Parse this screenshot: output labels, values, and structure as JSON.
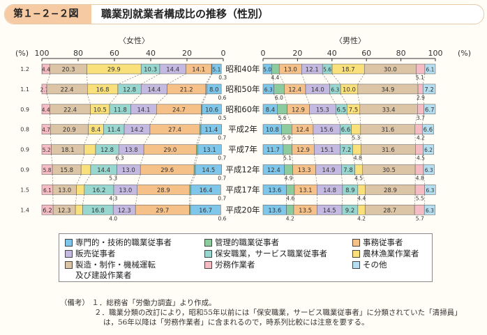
{
  "header": {
    "figure_number": "第１−２−２図",
    "title": "職業別就業者構成比の推移（性別）"
  },
  "chart_data": {
    "type": "bar",
    "orientation": "horizontal-stacked",
    "panels": [
      {
        "name": "female",
        "label": "〈女性〉",
        "unit_label": "(%)",
        "ticks": [
          "100",
          "80",
          "60",
          "40",
          "20",
          "0"
        ],
        "direction": "right-to-left"
      },
      {
        "name": "male",
        "label": "〈男性〉",
        "unit_label": "(%)",
        "ticks": [
          "0",
          "20",
          "40",
          "60",
          "80",
          "100"
        ],
        "direction": "left-to-right"
      }
    ],
    "categories": [
      "昭和40年",
      "昭和50年",
      "昭和60年",
      "平成2年",
      "平成7年",
      "平成12年",
      "平成17年",
      "平成20年"
    ],
    "occupations": [
      {
        "label": "専門的・技術的職業従事者",
        "color": "#7ec6ea"
      },
      {
        "label": "管理的職業従事者",
        "color": "#8ccb9e"
      },
      {
        "label": "事務従事者",
        "color": "#f6c089"
      },
      {
        "label": "販売従事者",
        "color": "#c4b9e0"
      },
      {
        "label": "保安職業、サービス職業従事者",
        "color": "#98d6d0"
      },
      {
        "label": "農林漁業作業者",
        "color": "#f9e07a"
      },
      {
        "label": "製造・制作・機械運転\n及び建設作業者",
        "color": "#dcc4a6"
      },
      {
        "label": "労務作業者",
        "color": "#f5bcc4"
      },
      {
        "label": "その他",
        "color": "#b5dff0"
      }
    ],
    "female_values": [
      [
        null,
        null,
        null,
        null,
        null,
        null,
        null,
        null,
        null
      ],
      [
        null,
        null,
        null,
        null,
        null,
        null,
        null,
        null,
        null
      ],
      [
        null,
        null,
        null,
        null,
        null,
        null,
        null,
        null,
        null
      ],
      [
        null,
        null,
        null,
        null,
        null,
        null,
        null,
        null,
        null
      ],
      [
        null,
        null,
        null,
        null,
        null,
        null,
        null,
        null,
        null
      ],
      [
        null,
        null,
        null,
        null,
        null,
        null,
        null,
        null,
        null
      ],
      [
        null,
        null,
        null,
        null,
        null,
        null,
        null,
        null,
        null
      ],
      [
        null,
        null,
        null,
        null,
        null,
        null,
        null,
        null,
        null
      ]
    ],
    "female_rows": [
      {
        "outer": "1.2",
        "segs": [
          [
            "その他",
            0.1,
            ""
          ],
          [
            "労務作業者",
            4.4,
            "4.4"
          ],
          [
            "製造",
            20.3,
            "20.3"
          ],
          [
            "農林",
            29.9,
            "29.9"
          ],
          [
            "保安",
            10.3,
            "10.3"
          ],
          [
            "販売",
            14.4,
            "14.4"
          ],
          [
            "事務",
            14.1,
            "14.1"
          ],
          [
            "管理",
            0.3,
            ""
          ],
          [
            "専門",
            5.1,
            "5.1"
          ]
        ],
        "below": [
          {
            "text": "0.3",
            "at": 0.3
          }
        ]
      },
      {
        "outer": "1.1",
        "segs": [
          [
            "労務作業者",
            2.7,
            "2.7"
          ],
          [
            "製造",
            22.4,
            "22.4"
          ],
          [
            "農林",
            16.8,
            "16.8"
          ],
          [
            "保安",
            12.8,
            "12.8"
          ],
          [
            "販売",
            14.4,
            "14.4"
          ],
          [
            "事務",
            21.2,
            "21.2"
          ],
          [
            "管理",
            0.6,
            ""
          ],
          [
            "専門",
            8.0,
            "8.0"
          ]
        ],
        "below": [
          {
            "text": "0.6",
            "at": 0.6
          }
        ]
      },
      {
        "outer": "0.9",
        "segs": [
          [
            "労務作業者",
            4.4,
            "4.4"
          ],
          [
            "製造",
            22.4,
            "22.4"
          ],
          [
            "農林",
            10.5,
            "10.5"
          ],
          [
            "保安",
            11.8,
            "11.8"
          ],
          [
            "販売",
            14.1,
            "14.1"
          ],
          [
            "事務",
            24.7,
            "24.7"
          ],
          [
            "管理",
            0.5,
            ""
          ],
          [
            "専門",
            10.6,
            "10.6"
          ]
        ],
        "below": [
          {
            "text": "0.5",
            "at": 0.5
          }
        ]
      },
      {
        "outer": "0.8",
        "segs": [
          [
            "労務作業者",
            4.7,
            "4.7"
          ],
          [
            "製造",
            20.9,
            "20.9"
          ],
          [
            "農林",
            8.4,
            "8.4"
          ],
          [
            "保安",
            11.4,
            "11.4"
          ],
          [
            "販売",
            14.2,
            "14.2"
          ],
          [
            "事務",
            27.4,
            "27.4"
          ],
          [
            "管理",
            0.7,
            ""
          ],
          [
            "専門",
            11.4,
            "11.4"
          ]
        ],
        "below": [
          {
            "text": "0.7",
            "at": 0.7
          }
        ]
      },
      {
        "outer": "0.9",
        "segs": [
          [
            "労務作業者",
            5.2,
            "5.2"
          ],
          [
            "製造",
            18.1,
            "18.1"
          ],
          [
            "農林",
            6.3,
            ""
          ],
          [
            "保安",
            12.8,
            "12.8"
          ],
          [
            "販売",
            13.8,
            "13.8"
          ],
          [
            "事務",
            29.0,
            "29.0"
          ],
          [
            "管理",
            0.7,
            ""
          ],
          [
            "専門",
            13.1,
            "13.1"
          ]
        ],
        "below": [
          {
            "text": "6.3",
            "at": 57.1
          },
          {
            "text": "0.7",
            "at": 0.7
          }
        ]
      },
      {
        "outer": "0.9",
        "segs": [
          [
            "労務作業者",
            5.8,
            "5.8"
          ],
          [
            "製造",
            15.8,
            "15.8"
          ],
          [
            "農林",
            5.3,
            ""
          ],
          [
            "保安",
            14.4,
            "14.4"
          ],
          [
            "販売",
            13.0,
            "13.0"
          ],
          [
            "事務",
            29.6,
            "29.6"
          ],
          [
            "管理",
            0.7,
            ""
          ],
          [
            "専門",
            14.5,
            "14.5"
          ]
        ],
        "below": [
          {
            "text": "5.3",
            "at": 60.7
          },
          {
            "text": "0.7",
            "at": 0.7
          }
        ]
      },
      {
        "outer": "1.5",
        "segs": [
          [
            "労務作業者",
            6.1,
            "6.1"
          ],
          [
            "製造",
            13.0,
            "13.0"
          ],
          [
            "農林",
            4.3,
            ""
          ],
          [
            "保安",
            16.2,
            "16.2"
          ],
          [
            "販売",
            13.0,
            "13.0"
          ],
          [
            "事務",
            28.9,
            "28.9"
          ],
          [
            "管理",
            0.7,
            ""
          ],
          [
            "専門",
            16.4,
            "16.4"
          ]
        ],
        "below": [
          {
            "text": "4.3",
            "at": 60.6
          },
          {
            "text": "0.7",
            "at": 0.7
          }
        ]
      },
      {
        "outer": "1.4",
        "segs": [
          [
            "労務作業者",
            6.2,
            "6.2"
          ],
          [
            "製造",
            12.3,
            "12.3"
          ],
          [
            "農林",
            4.0,
            ""
          ],
          [
            "保安",
            16.8,
            "16.8"
          ],
          [
            "販売",
            12.3,
            "12.3"
          ],
          [
            "事務",
            29.7,
            "29.7"
          ],
          [
            "管理",
            0.6,
            ""
          ],
          [
            "専門",
            16.7,
            "16.7"
          ]
        ],
        "below": [
          {
            "text": "4.0",
            "at": 60.7
          },
          {
            "text": "0.6",
            "at": 0.6
          }
        ]
      }
    ],
    "male_rows": [
      {
        "segs": [
          [
            "専門",
            5.0,
            "5.0"
          ],
          [
            "管理",
            4.4,
            ""
          ],
          [
            "事務",
            13.0,
            "13.0"
          ],
          [
            "販売",
            12.1,
            "12.1"
          ],
          [
            "保安",
            5.6,
            "5.6"
          ],
          [
            "農林",
            18.7,
            "18.7"
          ],
          [
            "製造",
            30.0,
            "30.0"
          ],
          [
            "労務作業者",
            5.1,
            ""
          ],
          [
            "その他",
            6.1,
            "6.1"
          ]
        ],
        "below": [
          {
            "text": "4.4",
            "at": 7.0
          },
          {
            "text": "5.1",
            "at": 91.0
          }
        ]
      },
      {
        "segs": [
          [
            "専門",
            6.3,
            "6.3"
          ],
          [
            "管理",
            6.0,
            ""
          ],
          [
            "事務",
            12.4,
            "12.4"
          ],
          [
            "販売",
            14.0,
            "14.0"
          ],
          [
            "保安",
            6.3,
            "6.3"
          ],
          [
            "農林",
            10.0,
            "10.0"
          ],
          [
            "製造",
            34.9,
            "34.9"
          ],
          [
            "労務作業者",
            2.9,
            ""
          ],
          [
            "その他",
            7.2,
            "7.2"
          ]
        ],
        "below": [
          {
            "text": "6.0",
            "at": 9.3
          },
          {
            "text": "2.9",
            "at": 91.5
          }
        ]
      },
      {
        "segs": [
          [
            "専門",
            8.4,
            "8.4"
          ],
          [
            "管理",
            5.6,
            ""
          ],
          [
            "事務",
            12.9,
            "12.9"
          ],
          [
            "販売",
            15.3,
            "15.3"
          ],
          [
            "保安",
            6.5,
            "6.5"
          ],
          [
            "農林",
            7.5,
            "7.5"
          ],
          [
            "製造",
            33.4,
            "33.4"
          ],
          [
            "労務作業者",
            3.7,
            ""
          ],
          [
            "その他",
            6.7,
            "6.7"
          ]
        ],
        "below": [
          {
            "text": "5.6",
            "at": 11.2
          },
          {
            "text": "3.7",
            "at": 91.5
          }
        ]
      },
      {
        "segs": [
          [
            "専門",
            10.8,
            "10.8"
          ],
          [
            "管理",
            5.9,
            ""
          ],
          [
            "事務",
            12.4,
            "12.4"
          ],
          [
            "販売",
            15.6,
            "15.6"
          ],
          [
            "保安",
            6.6,
            "6.6"
          ],
          [
            "農林",
            5.3,
            ""
          ],
          [
            "製造",
            31.6,
            "31.6"
          ],
          [
            "労務作業者",
            4.2,
            ""
          ],
          [
            "その他",
            6.6,
            "6.6"
          ]
        ],
        "below": [
          {
            "text": "5.9",
            "at": 13.7
          },
          {
            "text": "5.3",
            "at": 54.0
          },
          {
            "text": "4.2",
            "at": 91.5
          }
        ]
      },
      {
        "segs": [
          [
            "専門",
            11.7,
            "11.7"
          ],
          [
            "管理",
            5.1,
            ""
          ],
          [
            "事務",
            12.9,
            "12.9"
          ],
          [
            "販売",
            15.1,
            "15.1"
          ],
          [
            "保安",
            7.2,
            "7.2"
          ],
          [
            "農林",
            4.8,
            ""
          ],
          [
            "製造",
            31.6,
            "31.6"
          ],
          [
            "労務作業者",
            4.5,
            ""
          ],
          [
            "その他",
            6.2,
            "6.2"
          ]
        ],
        "below": [
          {
            "text": "5.1",
            "at": 14.2
          },
          {
            "text": "4.8",
            "at": 55.0
          },
          {
            "text": "4.5",
            "at": 91.5
          }
        ]
      },
      {
        "segs": [
          [
            "専門",
            12.4,
            "12.4"
          ],
          [
            "管理",
            4.9,
            ""
          ],
          [
            "事務",
            13.3,
            "13.3"
          ],
          [
            "販売",
            14.9,
            "14.9"
          ],
          [
            "保安",
            7.8,
            "7.8"
          ],
          [
            "農林",
            4.5,
            ""
          ],
          [
            "製造",
            30.5,
            "30.5"
          ],
          [
            "労務作業者",
            4.8,
            ""
          ],
          [
            "その他",
            6.3,
            "6.3"
          ]
        ],
        "below": [
          {
            "text": "4.9",
            "at": 14.8
          },
          {
            "text": "4.5",
            "at": 55.5
          },
          {
            "text": "4.8",
            "at": 91.0
          }
        ]
      },
      {
        "segs": [
          [
            "専門",
            13.6,
            "13.6"
          ],
          [
            "管理",
            4.6,
            ""
          ],
          [
            "事務",
            13.1,
            "13.1"
          ],
          [
            "販売",
            14.8,
            "14.8"
          ],
          [
            "保安",
            8.9,
            "8.9"
          ],
          [
            "農林",
            4.4,
            ""
          ],
          [
            "製造",
            28.9,
            "28.9"
          ],
          [
            "労務作業者",
            5.5,
            ""
          ],
          [
            "その他",
            6.3,
            "6.3"
          ]
        ],
        "below": [
          {
            "text": "4.6",
            "at": 15.9
          },
          {
            "text": "4.4",
            "at": 57.2
          },
          {
            "text": "5.5",
            "at": 91.0
          }
        ]
      },
      {
        "segs": [
          [
            "専門",
            13.6,
            "13.6"
          ],
          [
            "管理",
            4.2,
            ""
          ],
          [
            "事務",
            13.5,
            "13.5"
          ],
          [
            "販売",
            14.5,
            "14.5"
          ],
          [
            "保安",
            9.2,
            "9.2"
          ],
          [
            "農林",
            4.2,
            ""
          ],
          [
            "製造",
            28.7,
            "28.7"
          ],
          [
            "労務作業者",
            5.7,
            ""
          ],
          [
            "その他",
            6.3,
            "6.3"
          ]
        ],
        "below": [
          {
            "text": "4.2",
            "at": 15.7
          },
          {
            "text": "4.2",
            "at": 57.1
          },
          {
            "text": "5.7",
            "at": 91.0
          }
        ]
      }
    ]
  },
  "legend": {
    "items": [
      "専門的・技術的職業従事者",
      "管理的職業従事者",
      "事務従事者",
      "販売従事者",
      "保安職業，サービス職業従事者",
      "農林漁業作業者",
      "製造・制作・機械運転",
      "労務作業者",
      "その他"
    ],
    "item7_line2": "及び建設作業者"
  },
  "notes": {
    "label": "（備考）",
    "n1": "１．総務省「労働力調査」より作成。",
    "n2": "２．職業分類の改訂により，昭和55年以前には「保安職業，サービス職業従事者」に分類されていた「清掃員」",
    "n3": "は，56年以降は「労務作業者」に含まれるので，時系列比較には注意を要する。"
  }
}
